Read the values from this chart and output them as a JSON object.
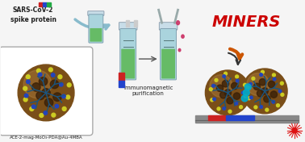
{
  "title": "ACE-2-mag-MoO₃-PDA@Au-4MBA",
  "miners_text": "MINERS",
  "label1": "SARS-CoV-2\nspike protein",
  "label2": "Immunomagnetic\npurification",
  "bg_color": "#f5f5f5",
  "miners_color": "#cc0000",
  "sphere_color": "#7a4e18",
  "sphere_dark": "#3a2008",
  "gold_dot": "#cccc22",
  "blue_dot": "#2244bb",
  "cyan_color": "#00aacc",
  "tube_body": "#aad4dd",
  "tube_fill": "#66bb66",
  "tube_line": "#88bbcc",
  "drop_color": "#cc3366",
  "magnet_red": "#cc2222",
  "magnet_blue": "#2244cc",
  "strip_dark": "#444444",
  "laser_color": "#dd1111",
  "arrow_orange": "#cc5500",
  "arrow_dark": "#222222",
  "text_color": "#222222"
}
